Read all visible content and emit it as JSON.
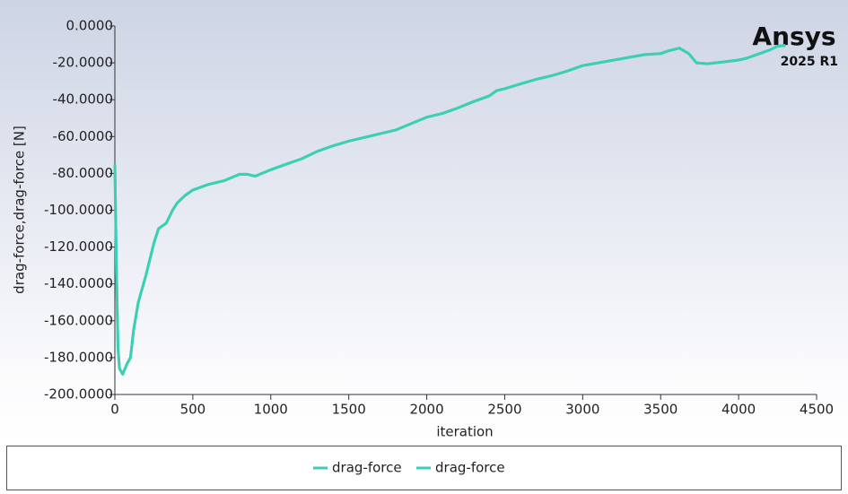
{
  "chart_data": {
    "type": "line",
    "x_label": "iteration",
    "y_label": "drag-force,drag-force [N]",
    "logo": {
      "brand": "Ansys",
      "version": "2025 R1"
    },
    "x": [
      0,
      10,
      20,
      30,
      50,
      80,
      100,
      120,
      150,
      200,
      250,
      280,
      330,
      370,
      400,
      450,
      500,
      600,
      700,
      800,
      850,
      900,
      1000,
      1100,
      1200,
      1300,
      1400,
      1500,
      1600,
      1700,
      1800,
      1900,
      2000,
      2100,
      2200,
      2300,
      2400,
      2450,
      2500,
      2600,
      2700,
      2800,
      2900,
      3000,
      3100,
      3200,
      3300,
      3400,
      3500,
      3550,
      3620,
      3680,
      3730,
      3800,
      3900,
      4000,
      4050,
      4100,
      4200,
      4250,
      4300
    ],
    "series": [
      {
        "name": "drag-force",
        "color": "#3ccfb4",
        "values": [
          -75,
          -130,
          -175,
          -186,
          -189,
          -183,
          -180,
          -165,
          -150,
          -135,
          -118,
          -110,
          -107,
          -100,
          -96,
          -92,
          -89,
          -86,
          -84,
          -80.5,
          -80.5,
          -81.5,
          -78,
          -75,
          -72,
          -68,
          -65,
          -62.5,
          -60.5,
          -58.5,
          -56.5,
          -53,
          -49.5,
          -47.5,
          -44.5,
          -41,
          -38,
          -35,
          -34,
          -31.5,
          -29,
          -27,
          -24.5,
          -21.5,
          -20,
          -18.5,
          -17,
          -15.5,
          -15,
          -13.5,
          -12,
          -15,
          -20,
          -20.5,
          -19.5,
          -18.5,
          -17.5,
          -16,
          -13,
          -11,
          -10.5
        ]
      },
      {
        "name": "drag-force",
        "color": "#3ccfb4",
        "values": [
          -75,
          -130,
          -175,
          -186,
          -189,
          -183,
          -180,
          -165,
          -150,
          -135,
          -118,
          -110,
          -107,
          -100,
          -96,
          -92,
          -89,
          -86,
          -84,
          -80.5,
          -80.5,
          -81.5,
          -78,
          -75,
          -72,
          -68,
          -65,
          -62.5,
          -60.5,
          -58.5,
          -56.5,
          -53,
          -49.5,
          -47.5,
          -44.5,
          -41,
          -38,
          -35,
          -34,
          -31.5,
          -29,
          -27,
          -24.5,
          -21.5,
          -20,
          -18.5,
          -17,
          -15.5,
          -15,
          -13.5,
          -12,
          -15,
          -20,
          -20.5,
          -19.5,
          -18.5,
          -17.5,
          -16,
          -13,
          -11,
          -10.5
        ]
      }
    ],
    "xlim": [
      0,
      4500
    ],
    "xticks": [
      0,
      500,
      1000,
      1500,
      2000,
      2500,
      3000,
      3500,
      4000,
      4500
    ],
    "ylim": [
      -200,
      0
    ],
    "yticks": [
      {
        "value": 0,
        "label": "0.0000"
      },
      {
        "value": -20,
        "label": "-20.0000"
      },
      {
        "value": -40,
        "label": "-40.0000"
      },
      {
        "value": -60,
        "label": "-60.0000"
      },
      {
        "value": -80,
        "label": "-80.0000"
      },
      {
        "value": -100,
        "label": "-100.0000"
      },
      {
        "value": -120,
        "label": "-120.0000"
      },
      {
        "value": -140,
        "label": "-140.0000"
      },
      {
        "value": -160,
        "label": "-160.0000"
      },
      {
        "value": -180,
        "label": "-180.0000"
      },
      {
        "value": -200,
        "label": "-200.0000"
      }
    ],
    "grid": false,
    "legend": "bottom"
  }
}
